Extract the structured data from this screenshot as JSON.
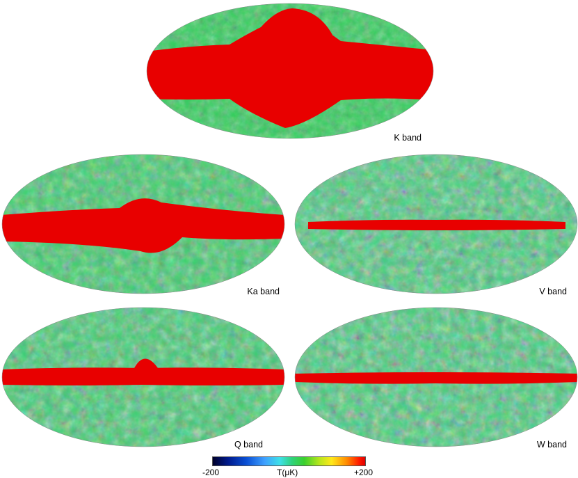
{
  "maps": [
    {
      "band": "K band",
      "label": "K band"
    },
    {
      "band": "Ka band",
      "label": "Ka band"
    },
    {
      "band": "V band",
      "label": "V band"
    },
    {
      "band": "Q band",
      "label": "Q band"
    },
    {
      "band": "W band",
      "label": "W band"
    }
  ],
  "colorbar": {
    "min_label": "-200",
    "unit_label": "T(μK)",
    "max_label": "+200",
    "colors": [
      "#00002a",
      "#001a8c",
      "#0a4fd4",
      "#3fa0ff",
      "#3ee0e8",
      "#2fd27a",
      "#3bcf2d",
      "#b8e61c",
      "#ffe81a",
      "#ff8a00",
      "#ff1a00",
      "#e00000"
    ]
  }
}
